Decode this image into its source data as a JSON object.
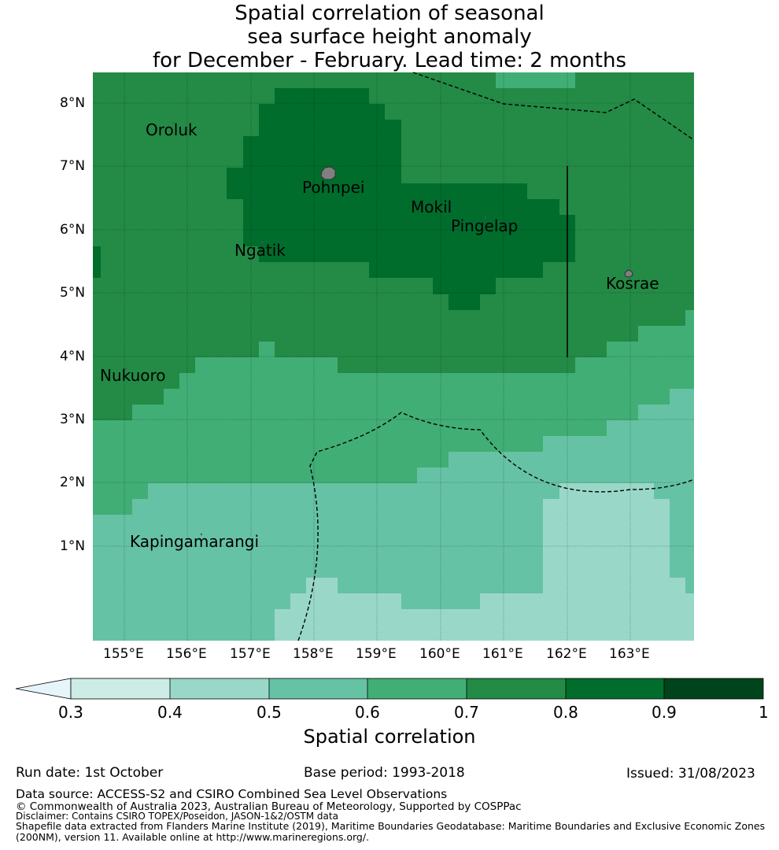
{
  "title": {
    "line1": "Spatial correlation of seasonal",
    "line2": "sea surface height anomaly",
    "line3": "for December - February. Lead time: 2 months"
  },
  "map": {
    "lat_labels": [
      "8°N",
      "7°N",
      "6°N",
      "5°N",
      "4°N",
      "3°N",
      "2°N",
      "1°N"
    ],
    "lon_labels": [
      "155°E",
      "156°E",
      "157°E",
      "158°E",
      "159°E",
      "160°E",
      "161°E",
      "162°E",
      "163°E"
    ],
    "places": [
      "Oroluk",
      "Pohnpei",
      "Mokil",
      "Pingelap",
      "Ngatik",
      "Kosrae",
      "Nukuoro",
      "Kapingamarangi"
    ],
    "colors": {
      "c03": "#cdece6",
      "c04": "#99d8c9",
      "c05": "#66c2a4",
      "c06": "#41ae76",
      "c07": "#238b45",
      "c08": "#006d2c",
      "c09": "#00441b",
      "under": "#e5f5f9",
      "island": "#808080"
    }
  },
  "colorbar": {
    "ticks": [
      "0.3",
      "0.4",
      "0.5",
      "0.6",
      "0.7",
      "0.8",
      "0.9",
      "1"
    ],
    "label": "Spatial correlation"
  },
  "footer": {
    "run_date": "Run date: 1st October",
    "base_period": "Base period: 1993-2018",
    "issued": "Issued: 31/08/2023",
    "data_source": "Data source: ACCESS-S2 and CSIRO Combined Sea Level Observations",
    "copyright": "© Commonwealth of Australia 2023, Australian Bureau of Meteorology, Supported by COSPPac",
    "disclaimer": "Disclaimer: Contains CSIRO TOPEX/Poseidon, JASON-1&2/OSTM data",
    "shapefile1": "Shapefile data extracted from Flanders Marine Institute (2019), Maritime Boundaries Geodatabase: Maritime Boundaries and Exclusive Economic Zones",
    "shapefile2": "(200NM), version 11. Available online at http://www.marineregions.org/."
  }
}
